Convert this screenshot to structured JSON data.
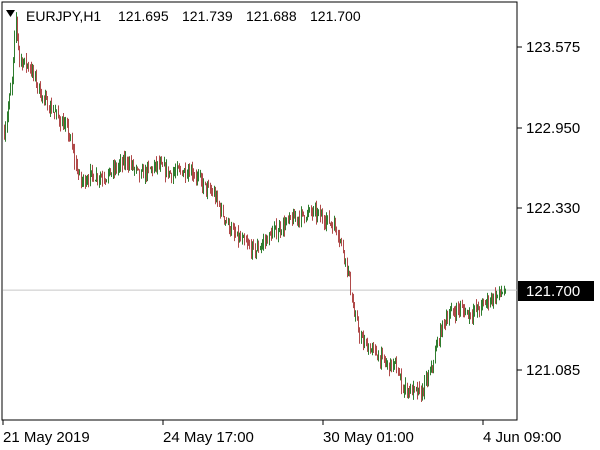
{
  "window": {
    "symbol_label": "EURJPY,H1",
    "ohlc_values": [
      "121.695",
      "121.739",
      "121.688",
      "121.700"
    ],
    "menu_icon": "triangle-down-icon"
  },
  "colors": {
    "background": "#ffffff",
    "frame": "#000000",
    "bull_bar": "#2f7d2f",
    "bear_bar": "#b04a4a",
    "price_line": "#c8c8c8",
    "current_price_bg": "#000000",
    "current_price_text": "#ffffff"
  },
  "chart_data": {
    "type": "ohlc",
    "symbol": "EURJPY",
    "timeframe": "H1",
    "y_ticks": [
      123.575,
      122.95,
      122.33,
      121.085
    ],
    "y_tick_labels": [
      "123.575",
      "122.950",
      "122.330",
      "121.085"
    ],
    "x_tick_labels": [
      "21 May 2019",
      "24 May 17:00",
      "30 May 01:00",
      "4 Jun 09:00"
    ],
    "current_price": 121.7,
    "current_price_label": "121.700",
    "anchors": [
      [
        0,
        122.92
      ],
      [
        6,
        123.3
      ],
      [
        9,
        123.78
      ],
      [
        12,
        123.48
      ],
      [
        20,
        123.42
      ],
      [
        30,
        123.18
      ],
      [
        40,
        123.06
      ],
      [
        50,
        122.92
      ],
      [
        56,
        122.66
      ],
      [
        60,
        122.53
      ],
      [
        66,
        122.58
      ],
      [
        80,
        122.58
      ],
      [
        96,
        122.7
      ],
      [
        106,
        122.58
      ],
      [
        120,
        122.66
      ],
      [
        130,
        122.6
      ],
      [
        146,
        122.63
      ],
      [
        158,
        122.48
      ],
      [
        164,
        122.44
      ],
      [
        170,
        122.3
      ],
      [
        180,
        122.12
      ],
      [
        196,
        122.0
      ],
      [
        210,
        122.14
      ],
      [
        226,
        122.25
      ],
      [
        240,
        122.3
      ],
      [
        250,
        122.26
      ],
      [
        260,
        122.18
      ],
      [
        266,
        121.98
      ],
      [
        270,
        121.78
      ],
      [
        274,
        121.5
      ],
      [
        280,
        121.3
      ],
      [
        290,
        121.22
      ],
      [
        300,
        121.12
      ],
      [
        306,
        121.12
      ],
      [
        312,
        120.95
      ],
      [
        320,
        120.92
      ],
      [
        326,
        120.9
      ],
      [
        334,
        121.08
      ],
      [
        340,
        121.34
      ],
      [
        346,
        121.5
      ],
      [
        356,
        121.56
      ],
      [
        364,
        121.52
      ],
      [
        372,
        121.56
      ],
      [
        378,
        121.62
      ],
      [
        386,
        121.66
      ],
      [
        392,
        121.7
      ]
    ],
    "n_bars": 393,
    "visible_range": {
      "from": 270,
      "to": 392
    },
    "ylim": [
      120.65,
      124.0
    ]
  }
}
